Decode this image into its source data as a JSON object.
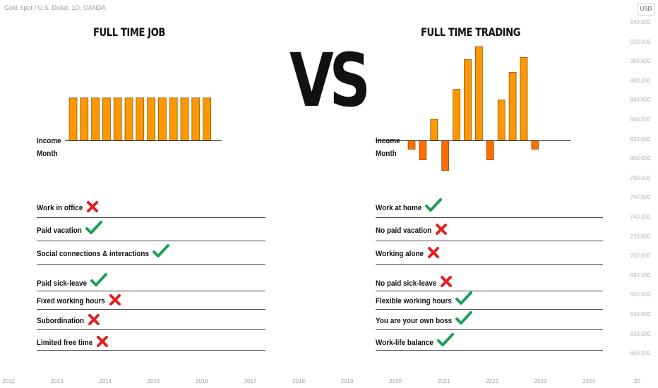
{
  "header": {
    "symbol": "Gold Spot / U.S. Dollar, 1D, OANDA",
    "currency": "USD"
  },
  "price_axis": {
    "labels": [
      "940.000",
      "920.000",
      "900.000",
      "880.000",
      "860.000",
      "840.000",
      "820.000",
      "800.000",
      "780.000",
      "760.000",
      "740.000",
      "720.000",
      "700.000",
      "680.000",
      "660.000",
      "640.000",
      "620.000",
      "600.000"
    ]
  },
  "time_axis": {
    "labels": [
      "2012",
      "2013",
      "2014",
      "2015",
      "2016",
      "2017",
      "2018",
      "2019",
      "2020",
      "2021",
      "2022",
      "2023",
      "2024",
      "20"
    ]
  },
  "vs_text": "VS",
  "colors": {
    "positive_bar": "#ff9800",
    "negative_bar": "#ff6d00",
    "check": "#1e9e5a",
    "cross": "#e0201f"
  },
  "chart_data": [
    {
      "type": "bar",
      "title": "FULL TIME JOB",
      "ylabel": "Income",
      "xlabel": "Month",
      "values": [
        1,
        1,
        1,
        1,
        1,
        1,
        1,
        1,
        1,
        1,
        1,
        1,
        1
      ],
      "ylim": [
        -1,
        2.3
      ],
      "grid": false,
      "items": [
        {
          "text": "Work in office",
          "mark": "cross"
        },
        {
          "text": "Paid vacation",
          "mark": "check"
        },
        {
          "text": "Social connections & interactions",
          "mark": "check"
        },
        {
          "text": "Paid sick-leave",
          "mark": "check"
        },
        {
          "text": "Fixed working hours",
          "mark": "cross"
        },
        {
          "text": "Subordination",
          "mark": "cross"
        },
        {
          "text": "Limited free time",
          "mark": "cross"
        }
      ]
    },
    {
      "type": "bar",
      "title": "FULL TIME TRADING",
      "ylabel": "Income",
      "xlabel": "Month",
      "values": [
        -0.2,
        -0.45,
        0.5,
        -0.7,
        1.2,
        1.9,
        2.2,
        -0.45,
        0.95,
        1.6,
        1.95,
        -0.2
      ],
      "ylim": [
        -1,
        2.3
      ],
      "grid": false,
      "items": [
        {
          "text": "Work at home",
          "mark": "check"
        },
        {
          "text": "No paid vacation",
          "mark": "cross"
        },
        {
          "text": "Working alone",
          "mark": "cross"
        },
        {
          "text": "No paid sick-leave",
          "mark": "cross"
        },
        {
          "text": "Flexible working hours",
          "mark": "check"
        },
        {
          "text": "You are your own boss",
          "mark": "check"
        },
        {
          "text": "Work-life balance",
          "mark": "check"
        }
      ]
    }
  ]
}
